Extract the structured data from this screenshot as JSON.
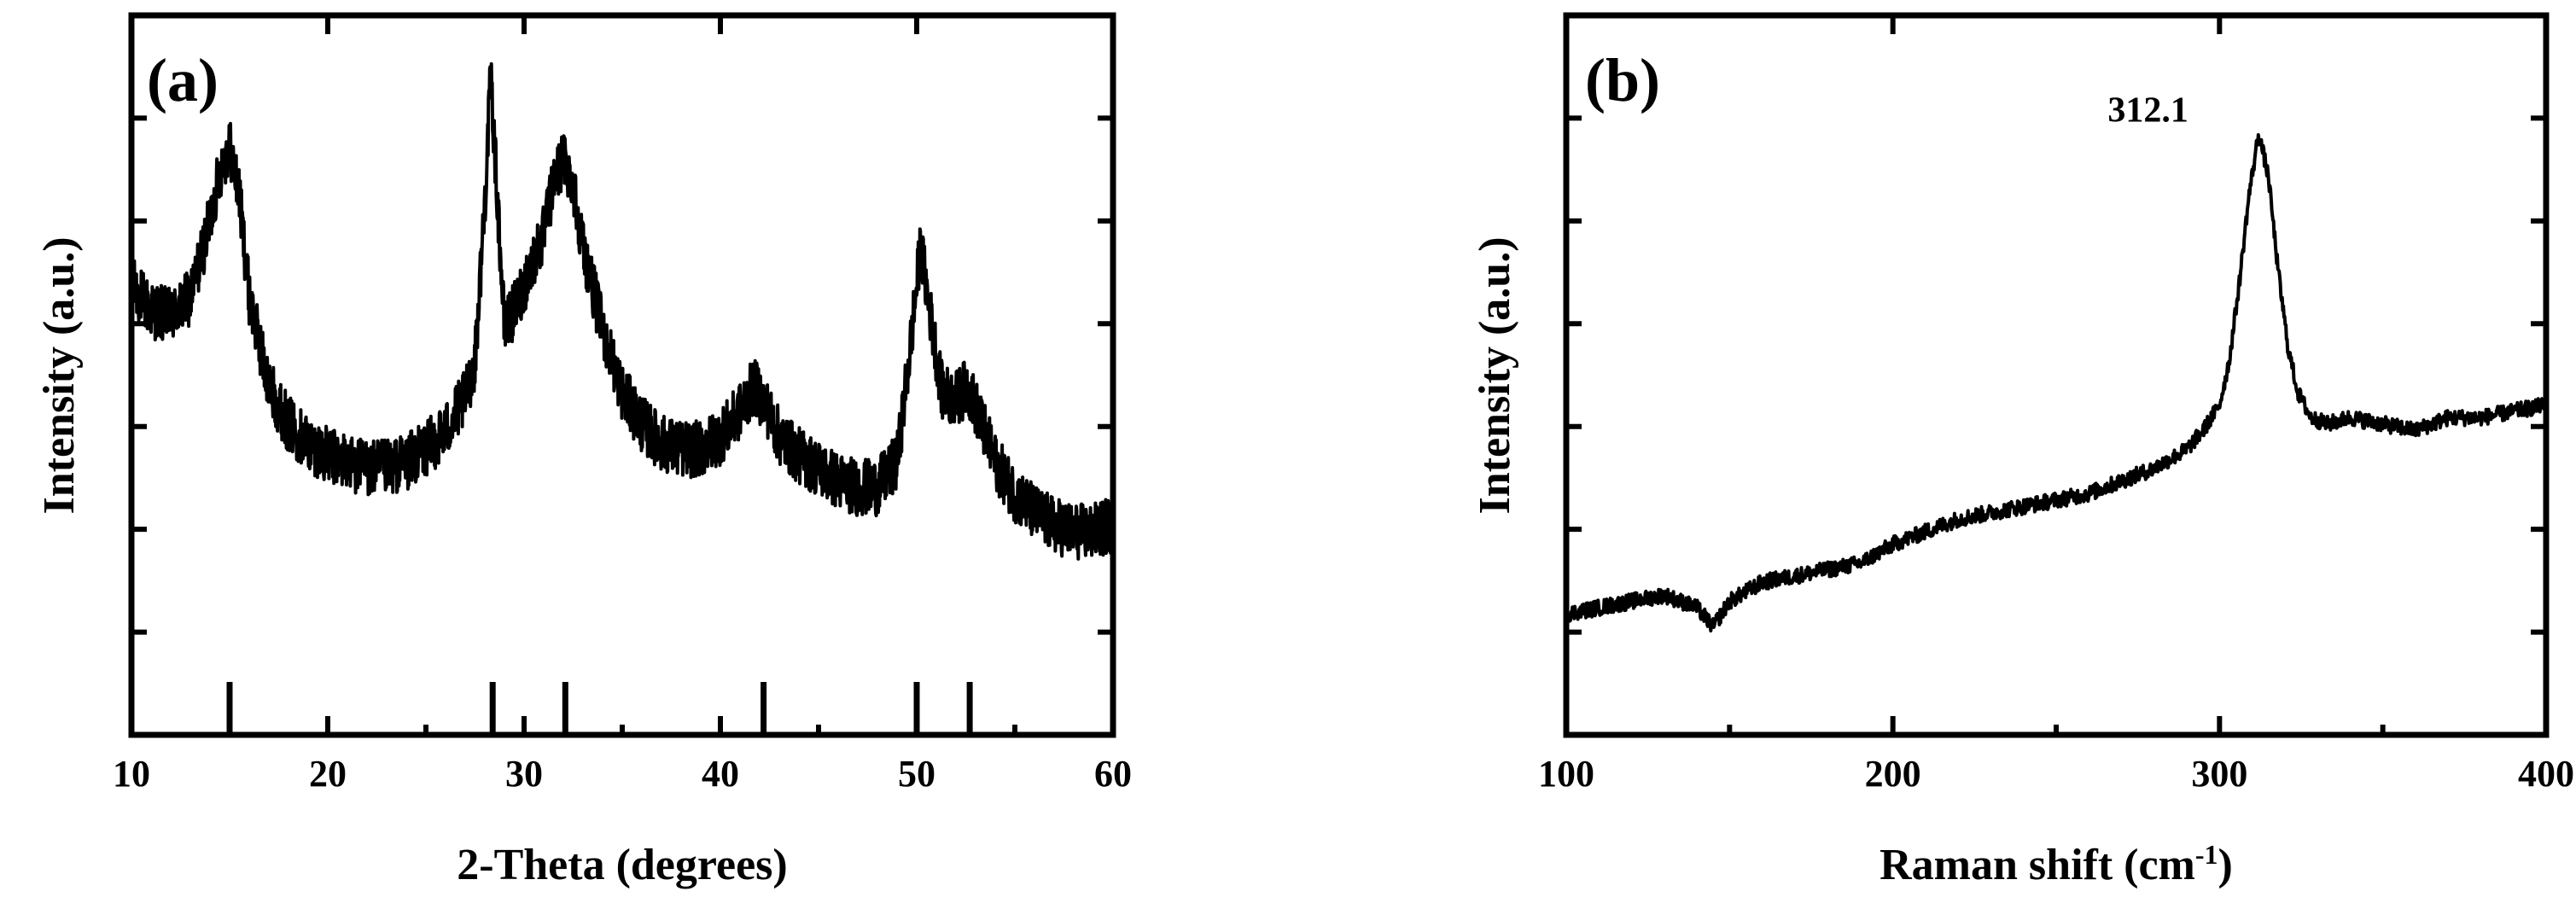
{
  "chart_data": [
    {
      "type": "line",
      "panel_label": "(a)",
      "xlabel": "2-Theta (degrees)",
      "ylabel": "Intensity (a.u.)",
      "xlim": [
        10,
        60
      ],
      "xticks": [
        10,
        20,
        30,
        40,
        50,
        60
      ],
      "y_tick_labels_shown": false,
      "grid": false,
      "series": [
        {
          "x": [
            10,
            11,
            12,
            13,
            14,
            14.5,
            15,
            15.5,
            16,
            17,
            18,
            19,
            20,
            21,
            22,
            23,
            24,
            25,
            26,
            27,
            27.5,
            28,
            28.3,
            28.6,
            29,
            29.5,
            30,
            31,
            31.5,
            32,
            32.5,
            33,
            34,
            35,
            36,
            37,
            38,
            39,
            40,
            41,
            41.7,
            42.3,
            43,
            44,
            45,
            46,
            47,
            48,
            49,
            49.6,
            50.2,
            50.8,
            51.3,
            52,
            52.6,
            53.2,
            54,
            55,
            56,
            57,
            58,
            59,
            60
          ],
          "y": [
            0.62,
            0.58,
            0.57,
            0.6,
            0.72,
            0.8,
            0.84,
            0.76,
            0.6,
            0.46,
            0.4,
            0.37,
            0.35,
            0.34,
            0.33,
            0.33,
            0.34,
            0.36,
            0.39,
            0.44,
            0.5,
            0.75,
            0.95,
            0.78,
            0.55,
            0.58,
            0.62,
            0.7,
            0.78,
            0.82,
            0.78,
            0.68,
            0.55,
            0.45,
            0.4,
            0.37,
            0.36,
            0.36,
            0.38,
            0.42,
            0.46,
            0.43,
            0.38,
            0.35,
            0.33,
            0.31,
            0.3,
            0.3,
            0.34,
            0.5,
            0.68,
            0.55,
            0.45,
            0.44,
            0.46,
            0.41,
            0.34,
            0.29,
            0.26,
            0.24,
            0.23,
            0.23,
            0.24
          ]
        }
      ],
      "reference_lines_x": [
        15.0,
        28.4,
        32.1,
        42.2,
        50.0,
        52.7
      ]
    },
    {
      "type": "line",
      "panel_label": "(b)",
      "xlabel": "Raman shift (cm",
      "xlabel_superscript": "-1",
      "xlabel_close": ")",
      "ylabel": "Intensity (a.u.)",
      "xlim": [
        100,
        400
      ],
      "xticks": [
        100,
        200,
        300,
        400
      ],
      "y_tick_labels_shown": false,
      "grid": false,
      "annotations": [
        {
          "text": "312.1",
          "x": 312.1
        }
      ],
      "series": [
        {
          "x": [
            100,
            110,
            120,
            130,
            140,
            145,
            150,
            160,
            170,
            180,
            190,
            200,
            210,
            220,
            230,
            240,
            250,
            260,
            270,
            280,
            290,
            295,
            300,
            303,
            306,
            309,
            312,
            315,
            318,
            321,
            324,
            328,
            333,
            340,
            350,
            360,
            370,
            380,
            390,
            400
          ],
          "y": [
            0.1,
            0.11,
            0.12,
            0.13,
            0.11,
            0.08,
            0.12,
            0.15,
            0.16,
            0.17,
            0.18,
            0.21,
            0.23,
            0.25,
            0.26,
            0.27,
            0.28,
            0.29,
            0.31,
            0.33,
            0.36,
            0.39,
            0.43,
            0.5,
            0.62,
            0.76,
            0.86,
            0.79,
            0.64,
            0.52,
            0.45,
            0.41,
            0.4,
            0.41,
            0.4,
            0.39,
            0.41,
            0.41,
            0.42,
            0.43
          ]
        }
      ]
    }
  ]
}
